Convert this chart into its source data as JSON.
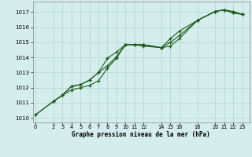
{
  "xlabel": "Graphe pression niveau de la mer (hPa)",
  "background_color": "#d5eeed",
  "grid_color": "#b8d8d5",
  "line_color": "#1a5c1a",
  "ylim_min": 1009.7,
  "ylim_max": 1017.7,
  "xlim_min": -0.3,
  "xlim_max": 23.8,
  "yticks": [
    1010,
    1011,
    1012,
    1013,
    1014,
    1015,
    1016,
    1017
  ],
  "xtick_labels": [
    "0",
    "2",
    "3",
    "4",
    "5",
    "6",
    "7",
    "8",
    "9",
    "10",
    "11",
    "12",
    "14",
    "15",
    "16",
    "18",
    "20",
    "21",
    "22",
    "23"
  ],
  "xtick_positions": [
    0,
    2,
    3,
    4,
    5,
    6,
    7,
    8,
    9,
    10,
    11,
    12,
    14,
    15,
    16,
    18,
    20,
    21,
    22,
    23
  ],
  "series1_x": [
    0,
    2,
    3,
    4,
    5,
    6,
    7,
    8,
    9,
    10,
    11,
    12,
    14,
    15,
    16,
    18,
    20,
    21,
    22,
    23
  ],
  "series1_y": [
    1010.2,
    1011.1,
    1011.5,
    1011.85,
    1012.0,
    1012.15,
    1012.45,
    1013.3,
    1013.95,
    1014.85,
    1014.85,
    1014.85,
    1014.65,
    1015.25,
    1015.75,
    1016.45,
    1017.05,
    1017.15,
    1017.05,
    1016.85
  ],
  "series2_x": [
    0,
    2,
    3,
    4,
    5,
    6,
    7,
    8,
    9,
    10,
    11,
    12,
    14,
    15,
    16,
    18,
    20,
    21,
    22,
    23
  ],
  "series2_y": [
    1010.2,
    1011.1,
    1011.5,
    1012.1,
    1012.2,
    1012.5,
    1013.0,
    1013.45,
    1014.05,
    1014.85,
    1014.85,
    1014.75,
    1014.65,
    1014.75,
    1015.25,
    1016.45,
    1017.05,
    1017.15,
    1016.95,
    1016.85
  ],
  "series3_x": [
    2,
    3,
    4,
    5,
    6,
    7,
    8,
    9,
    10,
    11,
    12,
    14,
    15,
    16,
    18,
    20,
    21,
    22,
    23
  ],
  "series3_y": [
    1011.1,
    1011.5,
    1012.1,
    1012.2,
    1012.5,
    1013.0,
    1013.95,
    1014.35,
    1014.85,
    1014.85,
    1014.85,
    1014.65,
    1015.0,
    1015.45,
    1016.45,
    1017.05,
    1017.15,
    1016.95,
    1016.85
  ]
}
